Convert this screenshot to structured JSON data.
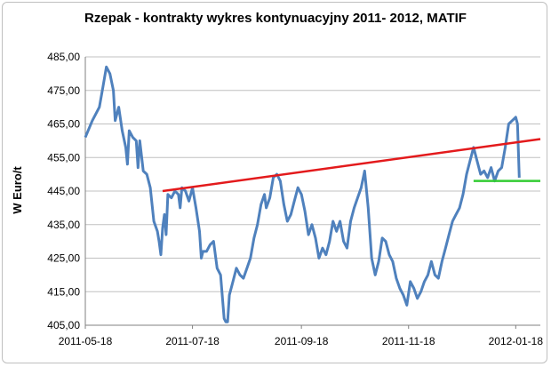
{
  "chart_data": {
    "type": "line",
    "title": "Rzepak - kontrakty wykres kontynuacyjny 2011- 2012,  MATIF",
    "xlabel": "",
    "ylabel": "W Euro/t",
    "ylim": [
      405,
      485
    ],
    "yticks": [
      "405,00",
      "415,00",
      "425,00",
      "435,00",
      "445,00",
      "455,00",
      "465,00",
      "475,00",
      "485,00"
    ],
    "xticks": [
      "2011-05-18",
      "2011-07-18",
      "2011-09-18",
      "2011-11-18",
      "2012-01-18"
    ],
    "xlim": [
      "2011-05-18",
      "2012-02-01"
    ],
    "grid": "horizontal",
    "legend": "none",
    "colors": {
      "series": "#4f81bd",
      "trendline": "#e31a1c",
      "support": "#33cc33",
      "grid": "#c0c0c0"
    },
    "series": [
      {
        "values": [
          [
            "2011-05-18",
            461
          ],
          [
            "2011-05-22",
            466
          ],
          [
            "2011-05-26",
            470
          ],
          [
            "2011-05-28",
            476
          ],
          [
            "2011-05-30",
            482
          ],
          [
            "2011-06-01",
            480
          ],
          [
            "2011-06-03",
            475
          ],
          [
            "2011-06-04",
            466
          ],
          [
            "2011-06-06",
            470
          ],
          [
            "2011-06-08",
            463
          ],
          [
            "2011-06-10",
            458
          ],
          [
            "2011-06-11",
            453
          ],
          [
            "2011-06-12",
            463
          ],
          [
            "2011-06-14",
            461
          ],
          [
            "2011-06-16",
            460
          ],
          [
            "2011-06-17",
            452
          ],
          [
            "2011-06-18",
            460
          ],
          [
            "2011-06-20",
            451
          ],
          [
            "2011-06-22",
            450
          ],
          [
            "2011-06-24",
            446
          ],
          [
            "2011-06-26",
            436
          ],
          [
            "2011-06-28",
            433
          ],
          [
            "2011-06-29",
            430
          ],
          [
            "2011-06-30",
            426
          ],
          [
            "2011-07-01",
            434
          ],
          [
            "2011-07-02",
            438
          ],
          [
            "2011-07-03",
            432
          ],
          [
            "2011-07-04",
            444
          ],
          [
            "2011-07-06",
            443
          ],
          [
            "2011-07-08",
            445
          ],
          [
            "2011-07-10",
            444
          ],
          [
            "2011-07-11",
            440
          ],
          [
            "2011-07-12",
            446
          ],
          [
            "2011-07-14",
            445
          ],
          [
            "2011-07-16",
            442
          ],
          [
            "2011-07-18",
            446
          ],
          [
            "2011-07-20",
            440
          ],
          [
            "2011-07-22",
            433
          ],
          [
            "2011-07-23",
            425
          ],
          [
            "2011-07-24",
            427
          ],
          [
            "2011-07-26",
            427
          ],
          [
            "2011-07-28",
            429
          ],
          [
            "2011-07-30",
            430
          ],
          [
            "2011-08-01",
            422
          ],
          [
            "2011-08-03",
            420
          ],
          [
            "2011-08-05",
            407
          ],
          [
            "2011-08-06",
            406
          ],
          [
            "2011-08-07",
            406
          ],
          [
            "2011-08-08",
            414
          ],
          [
            "2011-08-10",
            418
          ],
          [
            "2011-08-12",
            422
          ],
          [
            "2011-08-14",
            420
          ],
          [
            "2011-08-16",
            419
          ],
          [
            "2011-08-18",
            422
          ],
          [
            "2011-08-20",
            425
          ],
          [
            "2011-08-22",
            431
          ],
          [
            "2011-08-24",
            435
          ],
          [
            "2011-08-26",
            441
          ],
          [
            "2011-08-28",
            444
          ],
          [
            "2011-08-29",
            440
          ],
          [
            "2011-08-31",
            443
          ],
          [
            "2011-09-02",
            449
          ],
          [
            "2011-09-04",
            450
          ],
          [
            "2011-09-06",
            448
          ],
          [
            "2011-09-08",
            441
          ],
          [
            "2011-09-10",
            436
          ],
          [
            "2011-09-12",
            438
          ],
          [
            "2011-09-14",
            442
          ],
          [
            "2011-09-16",
            446
          ],
          [
            "2011-09-18",
            444
          ],
          [
            "2011-09-20",
            439
          ],
          [
            "2011-09-22",
            432
          ],
          [
            "2011-09-24",
            435
          ],
          [
            "2011-09-26",
            431
          ],
          [
            "2011-09-28",
            425
          ],
          [
            "2011-09-30",
            428
          ],
          [
            "2011-10-02",
            426
          ],
          [
            "2011-10-04",
            430
          ],
          [
            "2011-10-06",
            436
          ],
          [
            "2011-10-08",
            433
          ],
          [
            "2011-10-10",
            436
          ],
          [
            "2011-10-12",
            430
          ],
          [
            "2011-10-14",
            428
          ],
          [
            "2011-10-16",
            436
          ],
          [
            "2011-10-18",
            440
          ],
          [
            "2011-10-20",
            443
          ],
          [
            "2011-10-22",
            446
          ],
          [
            "2011-10-24",
            451
          ],
          [
            "2011-10-26",
            440
          ],
          [
            "2011-10-28",
            425
          ],
          [
            "2011-10-30",
            420
          ],
          [
            "2011-11-01",
            424
          ],
          [
            "2011-11-03",
            431
          ],
          [
            "2011-11-05",
            430
          ],
          [
            "2011-11-07",
            426
          ],
          [
            "2011-11-09",
            424
          ],
          [
            "2011-11-11",
            419
          ],
          [
            "2011-11-13",
            416
          ],
          [
            "2011-11-15",
            414
          ],
          [
            "2011-11-17",
            411
          ],
          [
            "2011-11-19",
            418
          ],
          [
            "2011-11-21",
            416
          ],
          [
            "2011-11-23",
            413
          ],
          [
            "2011-11-25",
            415
          ],
          [
            "2011-11-27",
            418
          ],
          [
            "2011-11-29",
            420
          ],
          [
            "2011-12-01",
            424
          ],
          [
            "2011-12-03",
            420
          ],
          [
            "2011-12-05",
            419
          ],
          [
            "2011-12-07",
            424
          ],
          [
            "2011-12-09",
            428
          ],
          [
            "2011-12-11",
            432
          ],
          [
            "2011-12-13",
            436
          ],
          [
            "2011-12-15",
            438
          ],
          [
            "2011-12-17",
            440
          ],
          [
            "2011-12-19",
            444
          ],
          [
            "2011-12-21",
            450
          ],
          [
            "2011-12-23",
            454
          ],
          [
            "2011-12-25",
            458
          ],
          [
            "2011-12-27",
            454
          ],
          [
            "2011-12-29",
            450
          ],
          [
            "2011-12-31",
            451
          ],
          [
            "2012-01-02",
            449
          ],
          [
            "2012-01-04",
            452
          ],
          [
            "2012-01-06",
            448
          ],
          [
            "2012-01-08",
            451
          ],
          [
            "2012-01-10",
            452
          ],
          [
            "2012-01-12",
            458
          ],
          [
            "2012-01-14",
            465
          ],
          [
            "2012-01-16",
            466
          ],
          [
            "2012-01-18",
            467
          ],
          [
            "2012-01-19",
            465
          ],
          [
            "2012-01-20",
            449
          ]
        ]
      }
    ],
    "annotations": [
      {
        "type": "trendline",
        "color": "#e31a1c",
        "from": [
          "2011-07-01",
          445
        ],
        "to": [
          "2012-02-01",
          460.5
        ]
      },
      {
        "type": "horizontal-line",
        "color": "#33cc33",
        "from": [
          "2011-12-25",
          448
        ],
        "to": [
          "2012-02-01",
          448
        ]
      }
    ]
  }
}
